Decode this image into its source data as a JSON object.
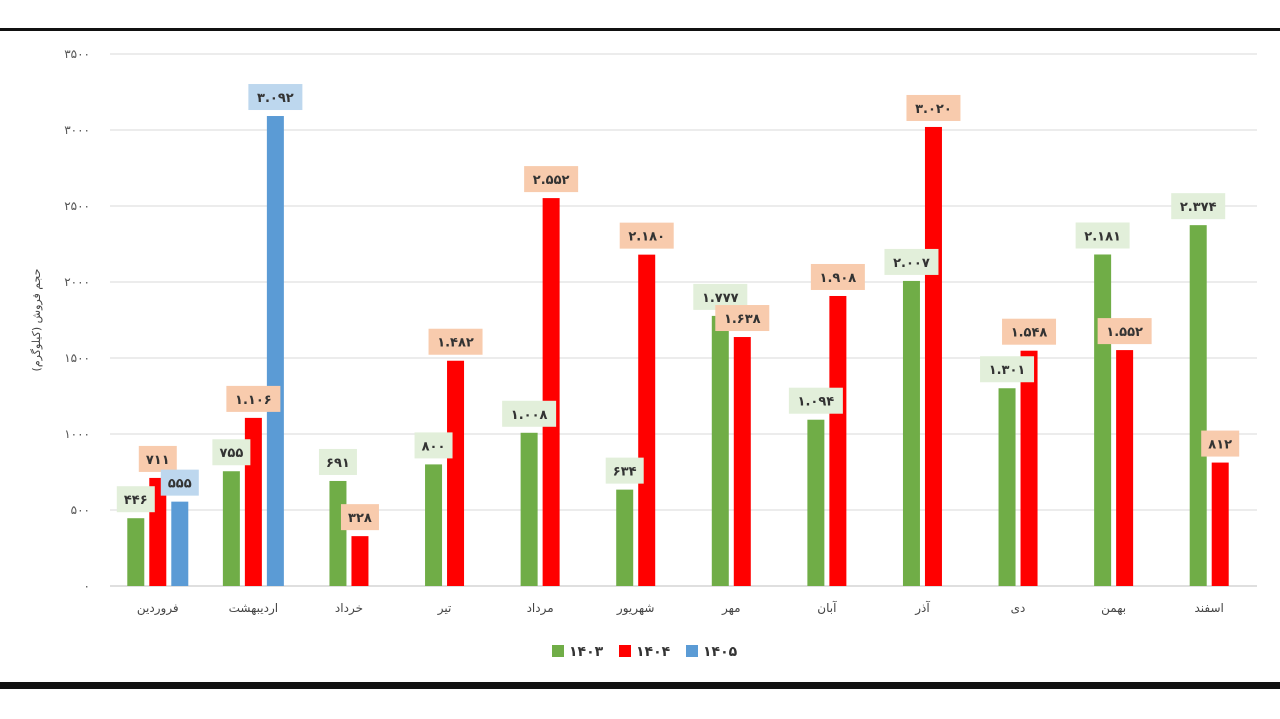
{
  "chart_data": {
    "type": "bar",
    "title": "",
    "ylabel": "حجم فروش (کیلوگرم)",
    "xlabel": "",
    "ylim": [
      0,
      3500
    ],
    "yticks": [
      {
        "value": 0,
        "label": "۰"
      },
      {
        "value": 500,
        "label": "۵۰۰"
      },
      {
        "value": 1000,
        "label": "۱۰۰۰"
      },
      {
        "value": 1500,
        "label": "۱۵۰۰"
      },
      {
        "value": 2000,
        "label": "۲۰۰۰"
      },
      {
        "value": 2500,
        "label": "۲۵۰۰"
      },
      {
        "value": 3000,
        "label": "۳۰۰۰"
      },
      {
        "value": 3500,
        "label": "۳۵۰۰"
      }
    ],
    "grid": true,
    "legend_position": "bottom",
    "categories": [
      "فروردین",
      "اردیبهشت",
      "خرداد",
      "تیر",
      "مرداد",
      "شهریور",
      "مهر",
      "آبان",
      "آذر",
      "دی",
      "بهمن",
      "اسفند"
    ],
    "series": [
      {
        "name": "۱۴۰۳",
        "color": "#70ad47",
        "label_bg": "#e2efda",
        "values": [
          446,
          755,
          691,
          800,
          1008,
          634,
          1777,
          1094,
          2007,
          1301,
          2181,
          2374
        ],
        "labels": [
          "۴۴۶",
          "۷۵۵",
          "۶۹۱",
          "۸۰۰",
          "۱.۰۰۸",
          "۶۳۴",
          "۱.۷۷۷",
          "۱.۰۹۴",
          "۲.۰۰۷",
          "۱.۳۰۱",
          "۲.۱۸۱",
          "۲.۳۷۴"
        ]
      },
      {
        "name": "۱۴۰۴",
        "color": "#ff0000",
        "label_bg": "#f8cbad",
        "values": [
          711,
          1106,
          328,
          1482,
          2552,
          2180,
          1638,
          1908,
          3020,
          1548,
          1552,
          812
        ],
        "labels": [
          "۷۱۱",
          "۱.۱۰۶",
          "۳۲۸",
          "۱.۴۸۲",
          "۲.۵۵۲",
          "۲.۱۸۰",
          "۱.۶۳۸",
          "۱.۹۰۸",
          "۳.۰۲۰",
          "۱.۵۴۸",
          "۱.۵۵۲",
          "۸۱۲"
        ]
      },
      {
        "name": "۱۴۰۵",
        "color": "#5b9bd5",
        "label_bg": "#bdd7ee",
        "values": [
          555,
          3092,
          null,
          null,
          null,
          null,
          null,
          null,
          null,
          null,
          null,
          null
        ],
        "labels": [
          "۵۵۵",
          "۳.۰۹۲",
          "",
          "",
          "",
          "",
          "",
          "",
          "",
          "",
          "",
          ""
        ]
      }
    ]
  }
}
